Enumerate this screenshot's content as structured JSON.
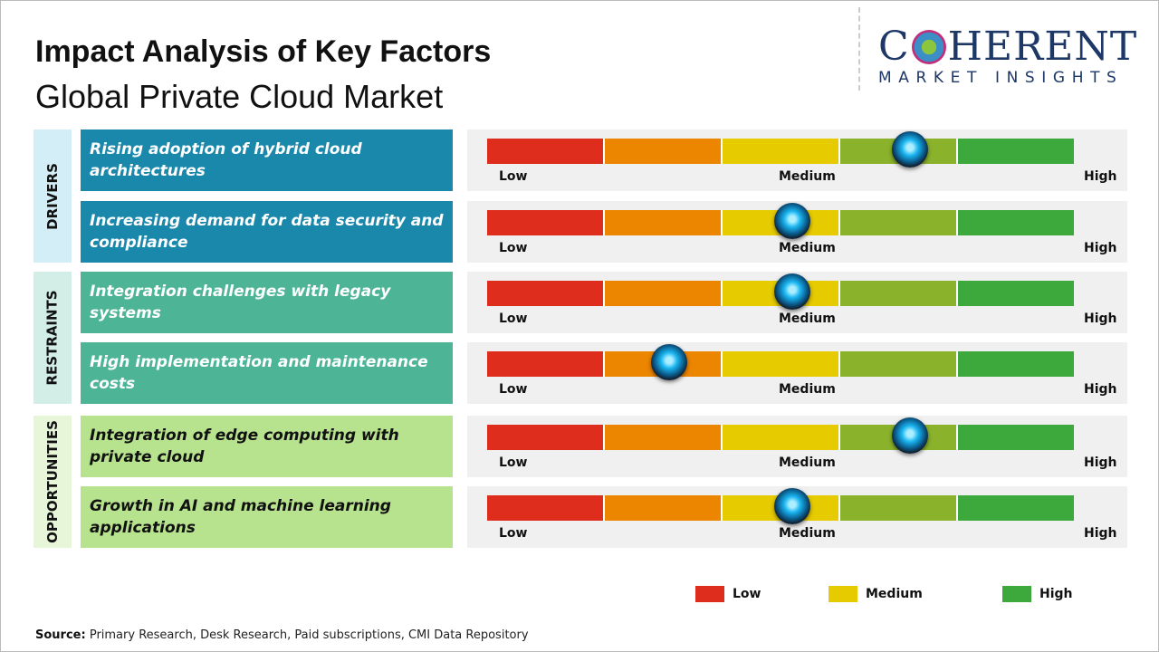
{
  "title": "Impact Analysis of Key Factors",
  "subtitle": "Global Private Cloud Market",
  "logo": {
    "name": "COHERENT",
    "tagline": "MARKET INSIGHTS"
  },
  "colors": {
    "low": "#de2d1c",
    "low_mid": "#ec8500",
    "medium": "#e6cb00",
    "mid_high": "#8ab22b",
    "high": "#3da83b",
    "drivers": "#1a88ab",
    "restraints": "#4db596",
    "opportunities": "#b7e28e"
  },
  "chart_data": {
    "type": "gauge",
    "scale": [
      "Low",
      "Medium",
      "High"
    ],
    "categories": [
      {
        "name": "DRIVERS",
        "factors": [
          {
            "label": "Rising adoption of hybrid cloud architectures",
            "impact": 0.72
          },
          {
            "label": "Increasing demand for data security and compliance",
            "impact": 0.52
          }
        ]
      },
      {
        "name": "RESTRAINTS",
        "factors": [
          {
            "label": "Integration challenges with legacy systems",
            "impact": 0.52
          },
          {
            "label": "High implementation and maintenance costs",
            "impact": 0.31
          }
        ]
      },
      {
        "name": "OPPORTUNITIES",
        "factors": [
          {
            "label": "Integration of edge computing with private cloud",
            "impact": 0.72
          },
          {
            "label": "Growth in AI and machine learning applications",
            "impact": 0.52
          }
        ]
      }
    ],
    "legend": [
      "Low",
      "Medium",
      "High"
    ]
  },
  "source_label": "Source:",
  "source": "Primary Research, Desk Research, Paid subscriptions, CMI Data Repository"
}
